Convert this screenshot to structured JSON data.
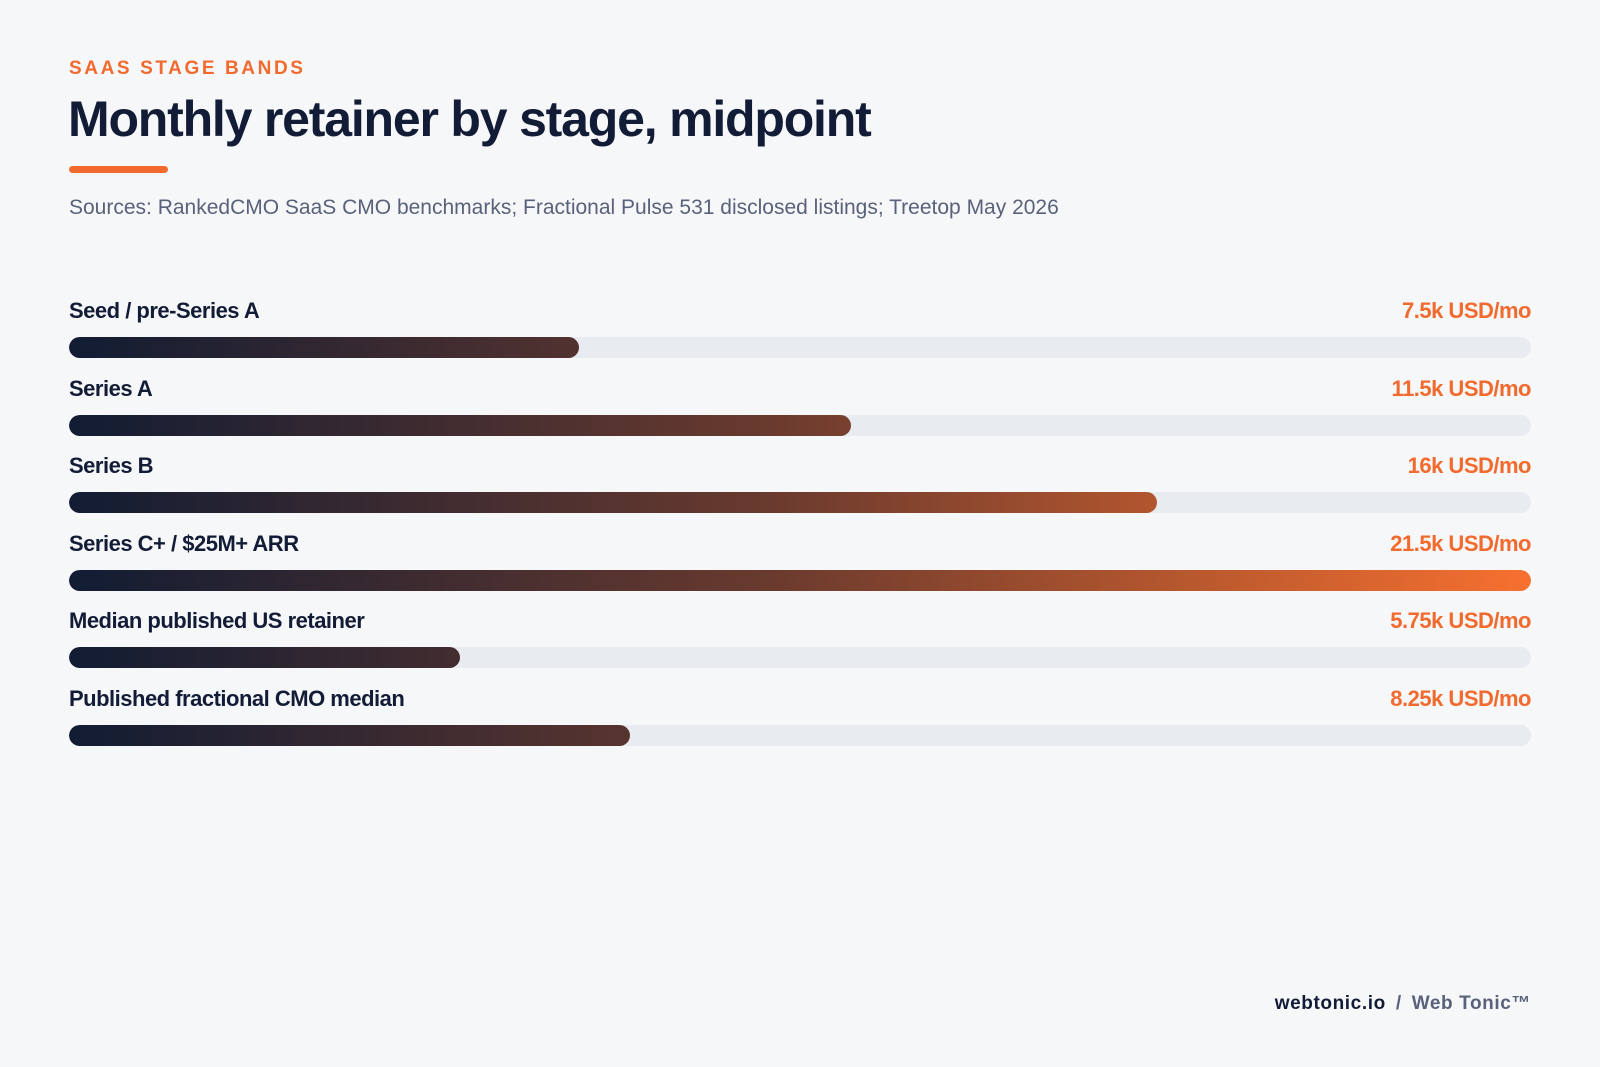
{
  "header": {
    "eyebrow": "SAAS STAGE BANDS",
    "title": "Monthly retainer by stage, midpoint",
    "subtitle": "Sources: RankedCMO SaaS CMO benchmarks; Fractional Pulse 531 disclosed listings; Treetop May 2026"
  },
  "chart_data": {
    "type": "bar",
    "orientation": "horizontal",
    "title": "Monthly retainer by stage, midpoint",
    "categories": [
      "Seed / pre-Series A",
      "Series A",
      "Series B",
      "Series C+ / $25M+ ARR",
      "Median published US retainer",
      "Published fractional CMO median"
    ],
    "values": [
      7.5,
      11.5,
      16,
      21.5,
      5.75,
      8.25
    ],
    "value_labels": [
      "7.5k USD/mo",
      "11.5k USD/mo",
      "16k USD/mo",
      "21.5k USD/mo",
      "5.75k USD/mo",
      "8.25k USD/mo"
    ],
    "xlim": [
      0,
      21.5
    ],
    "grid": false,
    "legend": "none"
  },
  "colors": {
    "accent": "#f26a2e",
    "bar_start": "#111c33",
    "bar_end": "#f7702f",
    "track": "#e8ebef",
    "text": "#131c36"
  },
  "footer": {
    "site": "webtonic.io",
    "separator": "/",
    "brand": "Web Tonic™"
  }
}
